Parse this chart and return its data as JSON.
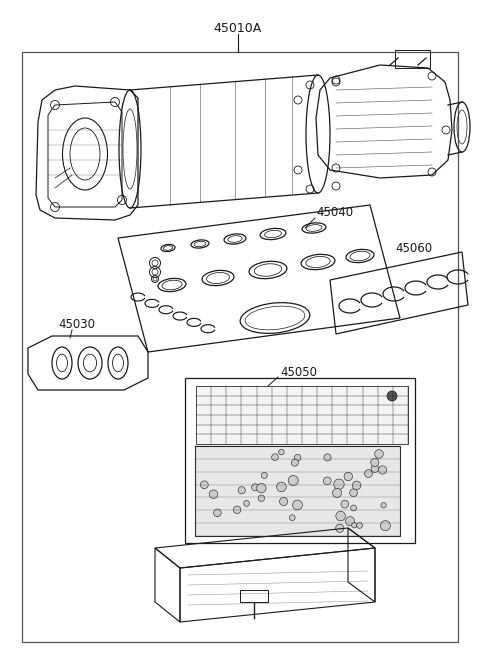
{
  "bg_color": "#ffffff",
  "line_color": "#1a1a1a",
  "text_color": "#1a1a1a",
  "border_color": "#555555",
  "labels": {
    "main": "45010A",
    "l45040": "45040",
    "l45030": "45030",
    "l45050": "45050",
    "l45060": "45060"
  },
  "figsize": [
    4.8,
    6.56
  ],
  "dpi": 100
}
